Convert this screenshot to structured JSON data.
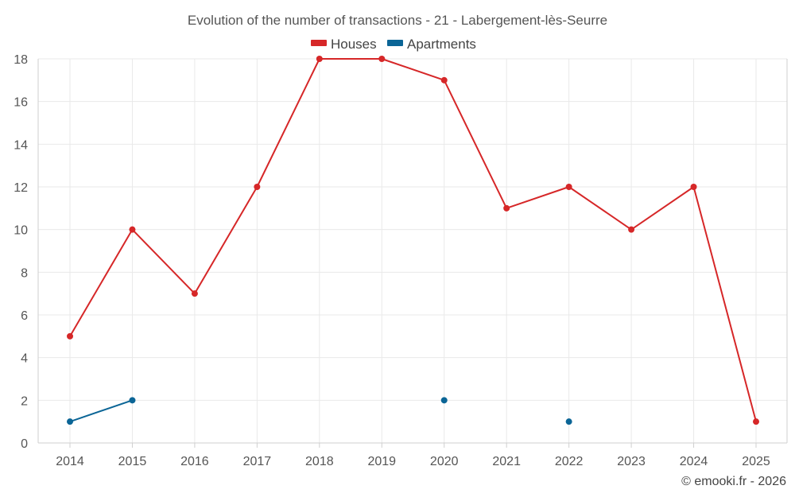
{
  "chart_data": {
    "type": "line",
    "title": "Evolution of the number of transactions - 21 - Labergement-lès-Seurre",
    "xlabel": "",
    "ylabel": "",
    "x": [
      "2014",
      "2015",
      "2016",
      "2017",
      "2018",
      "2019",
      "2020",
      "2021",
      "2022",
      "2023",
      "2024",
      "2025"
    ],
    "ylim": [
      0,
      18
    ],
    "yticks": [
      "0",
      "2",
      "4",
      "6",
      "8",
      "10",
      "12",
      "14",
      "16",
      "18"
    ],
    "grid": true,
    "legend_position": "top-center",
    "series": [
      {
        "name": "Houses",
        "color": "#d62728",
        "values": [
          5,
          10,
          7,
          12,
          18,
          18,
          17,
          11,
          12,
          10,
          12,
          1
        ]
      },
      {
        "name": "Apartments",
        "color": "#0b6596",
        "values": [
          1,
          2,
          null,
          null,
          null,
          null,
          2,
          null,
          1,
          null,
          null,
          null
        ]
      }
    ]
  },
  "credit": "© emooki.fr - 2026"
}
